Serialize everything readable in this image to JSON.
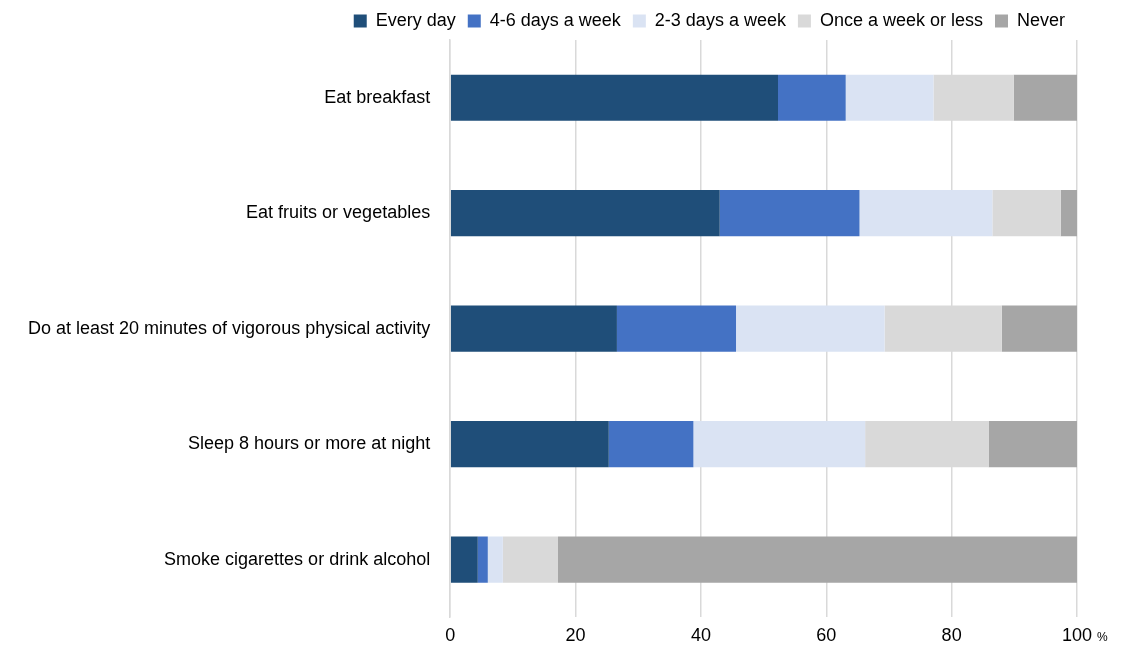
{
  "chart_data": {
    "type": "bar",
    "orientation": "horizontal",
    "stacked": true,
    "categories": [
      "Eat breakfast",
      "Eat fruits or vegetables",
      "Do at least 20 minutes of vigorous physical activity",
      "Sleep 8 hours or more at night",
      "Smoke cigarettes or drink alcohol"
    ],
    "series": [
      {
        "name": "Every day",
        "color": "#1f4e79",
        "values": [
          52.3,
          43.0,
          26.6,
          25.3,
          4.4
        ]
      },
      {
        "name": "4-6 days a week",
        "color": "#4472c4",
        "values": [
          10.8,
          22.3,
          19.0,
          13.5,
          1.6
        ]
      },
      {
        "name": "2-3 days a week",
        "color": "#dae3f3",
        "values": [
          14.0,
          21.2,
          23.7,
          27.4,
          2.4
        ]
      },
      {
        "name": "Once a week or less",
        "color": "#d9d9d9",
        "values": [
          12.8,
          10.9,
          18.7,
          19.7,
          8.8
        ]
      },
      {
        "name": "Never",
        "color": "#a6a6a6",
        "values": [
          10.1,
          2.6,
          12.0,
          14.1,
          82.8
        ]
      }
    ],
    "xlim": [
      0,
      100
    ],
    "xticks": [
      0,
      20,
      40,
      60,
      80,
      100
    ],
    "xlabel": "%",
    "grid": "x",
    "legend": "top"
  }
}
